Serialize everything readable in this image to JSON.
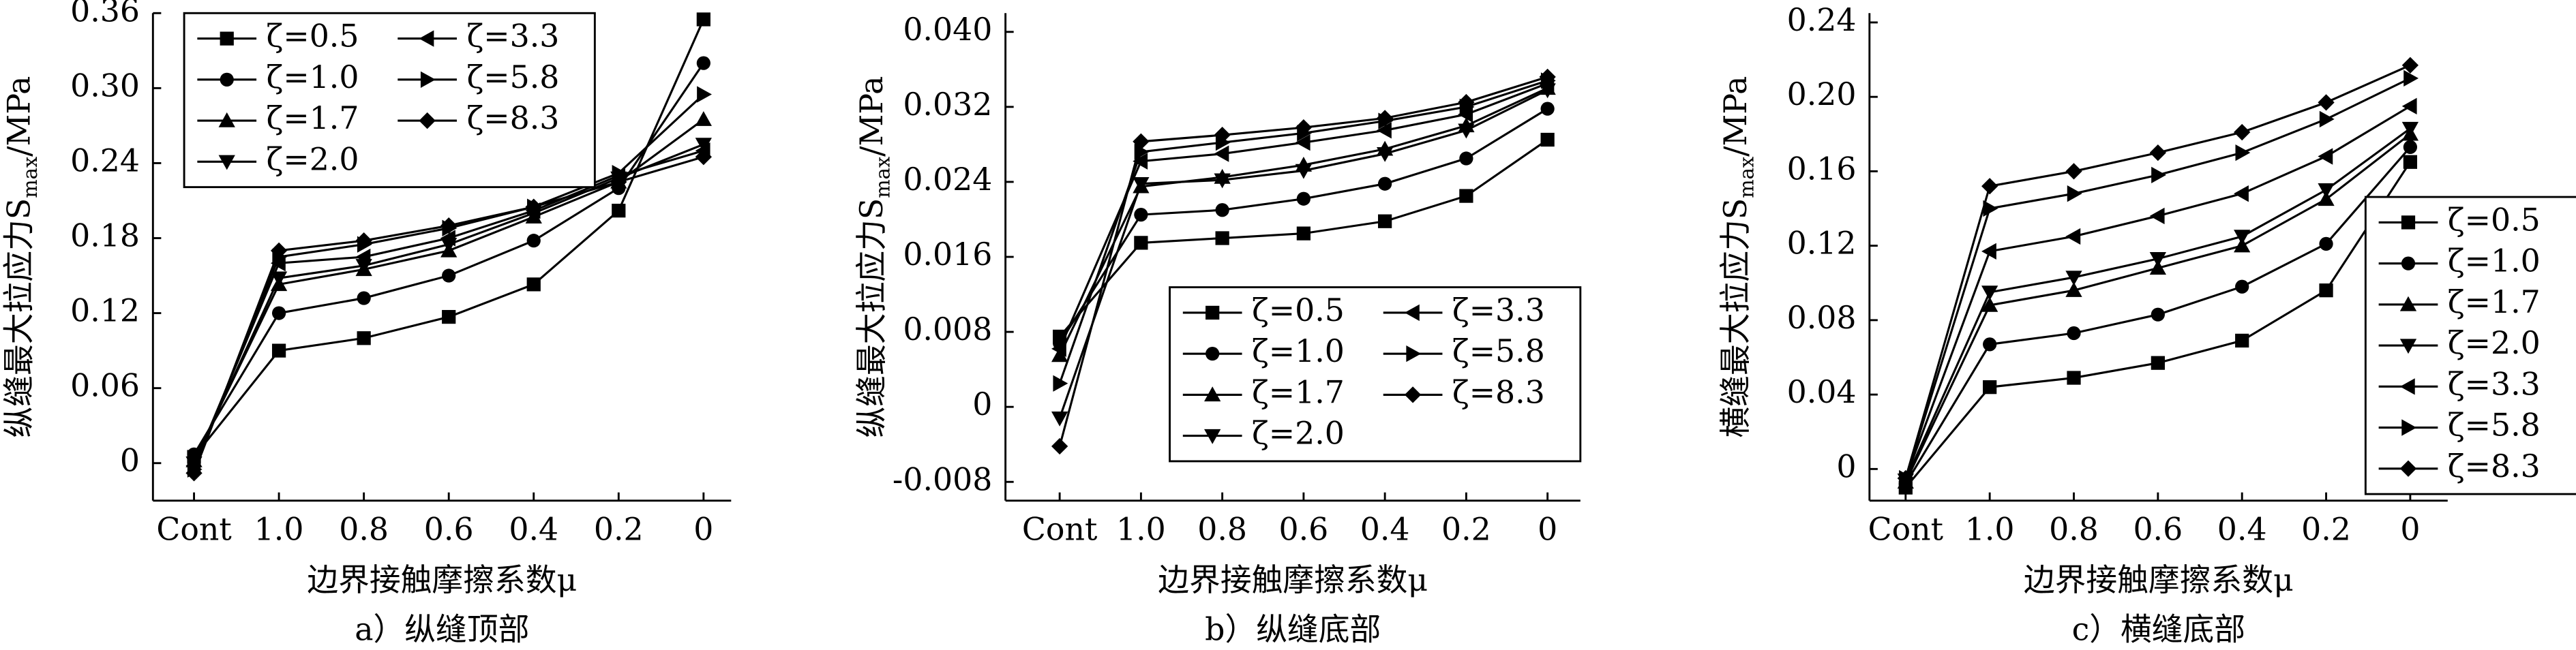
{
  "chart_data": [
    {
      "type": "line",
      "caption": "a）纵缝顶部",
      "x_label": "边界接触摩擦系数μ",
      "y_label": "纵缝最大拉应力S",
      "y_label_sub": "max",
      "y_label_tail": "/MPa",
      "categories": [
        "Cont",
        "1.0",
        "0.8",
        "0.6",
        "0.4",
        "0.2",
        "0"
      ],
      "ylim": [
        -0.03,
        0.36
      ],
      "yticks": [
        0,
        0.06,
        0.12,
        0.18,
        0.24,
        {
          "value": 0.3,
          "label": "0.30"
        },
        0.36
      ],
      "legend": "upper left",
      "series": [
        {
          "name": "ζ=0.5",
          "color": "#000000",
          "marker": "square",
          "values": [
            0.005,
            0.09,
            0.1,
            0.117,
            0.143,
            0.202,
            0.355
          ]
        },
        {
          "name": "ζ=1.0",
          "color": "#000000",
          "marker": "circle",
          "values": [
            0.007,
            0.12,
            0.132,
            0.15,
            0.178,
            0.22,
            0.32
          ]
        },
        {
          "name": "ζ=1.7",
          "color": "#000000",
          "marker": "triangle-up",
          "values": [
            0.002,
            0.143,
            0.155,
            0.17,
            0.197,
            0.225,
            0.275
          ]
        },
        {
          "name": "ζ=2.0",
          "color": "#000000",
          "marker": "triangle-down",
          "values": [
            0.0,
            0.148,
            0.158,
            0.175,
            0.2,
            0.228,
            0.255
          ]
        },
        {
          "name": "ζ=3.3",
          "color": "#000000",
          "marker": "triangle-left",
          "values": [
            -0.002,
            0.16,
            0.165,
            0.18,
            0.202,
            0.23,
            0.25
          ]
        },
        {
          "name": "ζ=5.8",
          "color": "#000000",
          "marker": "triangle-right",
          "values": [
            -0.005,
            0.165,
            0.175,
            0.188,
            0.205,
            0.232,
            0.295
          ]
        },
        {
          "name": "ζ=8.3",
          "color": "#000000",
          "marker": "diamond",
          "values": [
            -0.008,
            0.17,
            0.178,
            0.19,
            0.205,
            0.225,
            0.245
          ]
        }
      ]
    },
    {
      "type": "line",
      "caption": "b）纵缝底部",
      "x_label": "边界接触摩擦系数μ",
      "y_label": "纵缝最大拉应力S",
      "y_label_sub": "max",
      "y_label_tail": "/MPa",
      "categories": [
        "Cont",
        "1.0",
        "0.8",
        "0.6",
        "0.4",
        "0.2",
        "0"
      ],
      "ylim": [
        -0.01,
        0.042
      ],
      "yticks": [
        {
          "value": -0.008,
          "label": "-0.008"
        },
        0,
        {
          "value": 0.008,
          "label": "0.008"
        },
        {
          "value": 0.016,
          "label": "0.016"
        },
        {
          "value": 0.024,
          "label": "0.024"
        },
        {
          "value": 0.032,
          "label": "0.032"
        },
        {
          "value": 0.04,
          "label": "0.040"
        }
      ],
      "legend": "lower right",
      "series": [
        {
          "name": "ζ=0.5",
          "color": "#000000",
          "marker": "square",
          "values": [
            0.0075,
            0.0175,
            0.018,
            0.0185,
            0.0198,
            0.0225,
            0.0285
          ]
        },
        {
          "name": "ζ=1.0",
          "color": "#000000",
          "marker": "circle",
          "values": [
            0.0068,
            0.0205,
            0.021,
            0.0222,
            0.0238,
            0.0265,
            0.0318
          ]
        },
        {
          "name": "ζ=1.7",
          "color": "#000000",
          "marker": "triangle-up",
          "values": [
            0.0055,
            0.0235,
            0.0245,
            0.0258,
            0.0275,
            0.03,
            0.034
          ]
        },
        {
          "name": "ζ=2.0",
          "color": "#000000",
          "marker": "triangle-down",
          "values": [
            -0.0012,
            0.0238,
            0.0242,
            0.0252,
            0.027,
            0.0295,
            0.0338
          ]
        },
        {
          "name": "ζ=3.3",
          "color": "#000000",
          "marker": "triangle-left",
          "values": [
            0.0062,
            0.0262,
            0.027,
            0.0282,
            0.0295,
            0.0312,
            0.0345
          ]
        },
        {
          "name": "ζ=5.8",
          "color": "#000000",
          "marker": "triangle-right",
          "values": [
            0.0025,
            0.0272,
            0.0282,
            0.0292,
            0.0305,
            0.032,
            0.0348
          ]
        },
        {
          "name": "ζ=8.3",
          "color": "#000000",
          "marker": "diamond",
          "values": [
            -0.0042,
            0.0283,
            0.029,
            0.0298,
            0.0308,
            0.0325,
            0.0352
          ]
        }
      ]
    },
    {
      "type": "line",
      "caption": "c）横缝底部",
      "x_label": "边界接触摩擦系数μ",
      "y_label": "横缝最大拉应力S",
      "y_label_sub": "max",
      "y_label_tail": "/MPa",
      "categories": [
        "Cont",
        "1.0",
        "0.8",
        "0.6",
        "0.4",
        "0.2",
        "0"
      ],
      "ylim": [
        -0.017,
        0.245
      ],
      "yticks": [
        0,
        0.04,
        0.08,
        0.12,
        0.16,
        {
          "value": 0.2,
          "label": "0.20"
        },
        0.24
      ],
      "legend": "right",
      "series": [
        {
          "name": "ζ=0.5",
          "color": "#000000",
          "marker": "square",
          "values": [
            -0.01,
            0.044,
            0.049,
            0.057,
            0.069,
            0.096,
            0.165
          ]
        },
        {
          "name": "ζ=1.0",
          "color": "#000000",
          "marker": "circle",
          "values": [
            -0.008,
            0.067,
            0.073,
            0.083,
            0.098,
            0.121,
            0.173
          ]
        },
        {
          "name": "ζ=1.7",
          "color": "#000000",
          "marker": "triangle-up",
          "values": [
            -0.007,
            0.088,
            0.096,
            0.108,
            0.12,
            0.145,
            0.18
          ]
        },
        {
          "name": "ζ=2.0",
          "color": "#000000",
          "marker": "triangle-down",
          "values": [
            -0.006,
            0.095,
            0.103,
            0.113,
            0.125,
            0.15,
            0.183
          ]
        },
        {
          "name": "ζ=3.3",
          "color": "#000000",
          "marker": "triangle-left",
          "values": [
            -0.005,
            0.117,
            0.125,
            0.136,
            0.148,
            0.168,
            0.195
          ]
        },
        {
          "name": "ζ=5.8",
          "color": "#000000",
          "marker": "triangle-right",
          "values": [
            -0.005,
            0.14,
            0.148,
            0.158,
            0.17,
            0.188,
            0.21
          ]
        },
        {
          "name": "ζ=8.3",
          "color": "#000000",
          "marker": "diamond",
          "values": [
            -0.005,
            0.152,
            0.16,
            0.17,
            0.181,
            0.197,
            0.217
          ]
        }
      ]
    }
  ]
}
